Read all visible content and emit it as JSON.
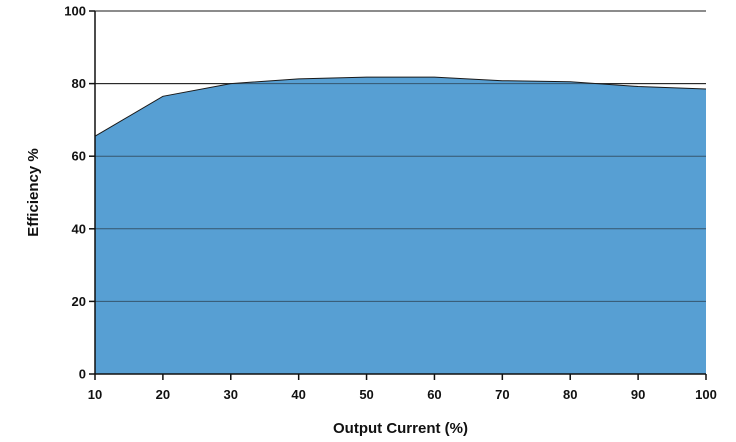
{
  "chart_data": {
    "type": "area",
    "title": "",
    "xlabel": "Output Current (%)",
    "ylabel": "Efficiency %",
    "x": [
      10,
      20,
      30,
      40,
      50,
      60,
      70,
      80,
      90,
      100
    ],
    "xticks": [
      "10",
      "20",
      "30",
      "40",
      "50",
      "60",
      "70",
      "80",
      "90",
      "100"
    ],
    "yticks": [
      "0",
      "20",
      "40",
      "60",
      "80",
      "100"
    ],
    "series": [
      {
        "values": [
          65.5,
          76.5,
          80.0,
          81.3,
          81.8,
          81.8,
          80.8,
          80.5,
          79.2,
          78.5
        ]
      }
    ],
    "xlim": [
      10,
      100
    ],
    "ylim": [
      0,
      100
    ],
    "grid": true,
    "colors": {
      "fill": "#579fd3",
      "stroke": "#1a1a1a",
      "grid": "#1a1a1a"
    }
  }
}
